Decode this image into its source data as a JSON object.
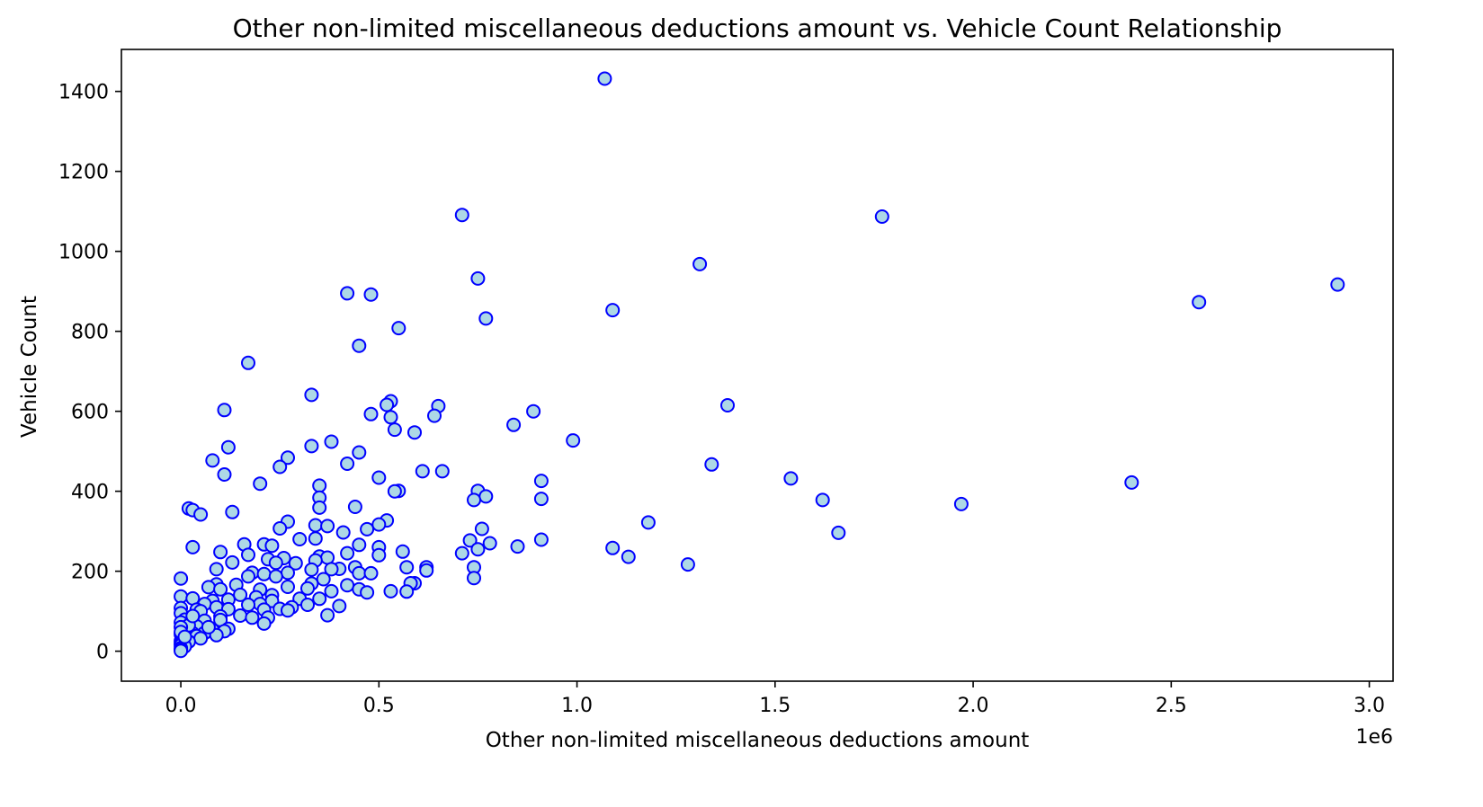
{
  "chart_data": {
    "type": "scatter",
    "title": "Other non-limited miscellaneous deductions amount vs. Vehicle Count Relationship",
    "xlabel": "Other non-limited miscellaneous deductions amount",
    "ylabel": "Vehicle Count",
    "x_offset_label": "1e6",
    "xlim": [
      -0.15,
      3.06
    ],
    "ylim": [
      -75,
      1505
    ],
    "x_ticks": [
      0.0,
      0.5,
      1.0,
      1.5,
      2.0,
      2.5,
      3.0
    ],
    "x_tick_labels": [
      "0.0",
      "0.5",
      "1.0",
      "1.5",
      "2.0",
      "2.5",
      "3.0"
    ],
    "y_ticks": [
      0,
      200,
      400,
      600,
      800,
      1000,
      1200,
      1400
    ],
    "y_tick_labels": [
      "0",
      "200",
      "400",
      "600",
      "800",
      "1000",
      "1200",
      "1400"
    ],
    "grid": false,
    "legend": "none",
    "marker_fill": "#add8e6",
    "marker_edge": "#0000ff",
    "points": [
      [
        1.07,
        1432
      ],
      [
        0.71,
        1091
      ],
      [
        1.77,
        1087
      ],
      [
        1.31,
        968
      ],
      [
        0.75,
        932
      ],
      [
        2.92,
        917
      ],
      [
        0.42,
        895
      ],
      [
        0.48,
        892
      ],
      [
        2.57,
        873
      ],
      [
        1.09,
        853
      ],
      [
        0.77,
        832
      ],
      [
        0.55,
        808
      ],
      [
        0.45,
        764
      ],
      [
        0.17,
        721
      ],
      [
        0.33,
        641
      ],
      [
        0.53,
        625
      ],
      [
        0.52,
        616
      ],
      [
        1.38,
        615
      ],
      [
        0.65,
        613
      ],
      [
        0.89,
        600
      ],
      [
        0.11,
        603
      ],
      [
        0.48,
        593
      ],
      [
        0.64,
        589
      ],
      [
        0.53,
        585
      ],
      [
        0.84,
        566
      ],
      [
        0.54,
        554
      ],
      [
        0.59,
        547
      ],
      [
        0.99,
        527
      ],
      [
        0.38,
        524
      ],
      [
        0.33,
        513
      ],
      [
        0.12,
        510
      ],
      [
        0.45,
        497
      ],
      [
        0.27,
        484
      ],
      [
        0.08,
        477
      ],
      [
        0.42,
        469
      ],
      [
        1.34,
        467
      ],
      [
        0.25,
        461
      ],
      [
        0.61,
        450
      ],
      [
        0.66,
        450
      ],
      [
        0.11,
        442
      ],
      [
        0.5,
        434
      ],
      [
        1.54,
        432
      ],
      [
        0.91,
        426
      ],
      [
        2.4,
        422
      ],
      [
        0.2,
        419
      ],
      [
        0.35,
        414
      ],
      [
        0.55,
        401
      ],
      [
        0.54,
        400
      ],
      [
        0.75,
        401
      ],
      [
        0.77,
        387
      ],
      [
        0.35,
        384
      ],
      [
        0.91,
        381
      ],
      [
        0.74,
        378
      ],
      [
        1.62,
        378
      ],
      [
        1.97,
        368
      ],
      [
        0.44,
        361
      ],
      [
        0.35,
        359
      ],
      [
        0.02,
        357
      ],
      [
        0.03,
        353
      ],
      [
        0.13,
        348
      ],
      [
        0.05,
        342
      ],
      [
        0.52,
        327
      ],
      [
        0.27,
        324
      ],
      [
        1.18,
        322
      ],
      [
        0.5,
        317
      ],
      [
        0.34,
        315
      ],
      [
        0.37,
        313
      ],
      [
        0.25,
        307
      ],
      [
        0.47,
        305
      ],
      [
        0.76,
        306
      ],
      [
        1.66,
        296
      ],
      [
        0.41,
        297
      ],
      [
        0.34,
        282
      ],
      [
        0.3,
        280
      ],
      [
        0.91,
        279
      ],
      [
        0.73,
        277
      ],
      [
        0.78,
        270
      ],
      [
        0.21,
        267
      ],
      [
        0.45,
        266
      ],
      [
        0.16,
        267
      ],
      [
        0.23,
        264
      ],
      [
        0.03,
        260
      ],
      [
        0.85,
        262
      ],
      [
        0.5,
        260
      ],
      [
        1.09,
        258
      ],
      [
        0.75,
        255
      ],
      [
        0.71,
        245
      ],
      [
        0.56,
        249
      ],
      [
        0.1,
        248
      ],
      [
        0.42,
        245
      ],
      [
        0.17,
        241
      ],
      [
        0.5,
        240
      ],
      [
        1.13,
        236
      ],
      [
        0.35,
        237
      ],
      [
        0.37,
        234
      ],
      [
        0.26,
        233
      ],
      [
        0.22,
        230
      ],
      [
        0.34,
        227
      ],
      [
        0.13,
        222
      ],
      [
        0.24,
        221
      ],
      [
        0.29,
        220
      ],
      [
        1.28,
        217
      ],
      [
        0.74,
        210
      ],
      [
        0.62,
        210
      ],
      [
        0.57,
        210
      ],
      [
        0.44,
        210
      ],
      [
        0.4,
        206
      ],
      [
        0.38,
        205
      ],
      [
        0.09,
        205
      ],
      [
        0.33,
        204
      ],
      [
        0.62,
        202
      ],
      [
        0.18,
        196
      ],
      [
        0.27,
        196
      ],
      [
        0.45,
        195
      ],
      [
        0.21,
        193
      ],
      [
        0.48,
        195
      ],
      [
        0.24,
        187
      ],
      [
        0.17,
        187
      ],
      [
        0.74,
        183
      ],
      [
        0.0,
        182
      ],
      [
        0.36,
        180
      ],
      [
        0.59,
        170
      ],
      [
        0.58,
        170
      ],
      [
        0.33,
        169
      ],
      [
        0.42,
        165
      ],
      [
        0.14,
        166
      ],
      [
        0.27,
        161
      ],
      [
        0.09,
        167
      ],
      [
        0.07,
        160
      ],
      [
        0.32,
        157
      ],
      [
        0.53,
        150
      ],
      [
        0.57,
        149
      ],
      [
        0.38,
        150
      ],
      [
        0.45,
        155
      ],
      [
        0.47,
        147
      ],
      [
        0.1,
        155
      ],
      [
        0.2,
        154
      ],
      [
        0.15,
        141
      ],
      [
        0.23,
        140
      ],
      [
        0.19,
        135
      ],
      [
        0.3,
        131
      ],
      [
        0.0,
        137
      ],
      [
        0.35,
        131
      ],
      [
        0.03,
        132
      ],
      [
        0.12,
        129
      ],
      [
        0.23,
        126
      ],
      [
        0.08,
        126
      ],
      [
        0.2,
        118
      ],
      [
        0.06,
        118
      ],
      [
        0.17,
        116
      ],
      [
        0.32,
        116
      ],
      [
        0.4,
        113
      ],
      [
        0.09,
        110
      ],
      [
        0.28,
        110
      ],
      [
        0.0,
        108
      ],
      [
        0.25,
        106
      ],
      [
        0.12,
        105
      ],
      [
        0.04,
        104
      ],
      [
        0.21,
        104
      ],
      [
        0.27,
        102
      ],
      [
        0.05,
        100
      ],
      [
        0.0,
        95
      ],
      [
        0.37,
        90
      ],
      [
        0.15,
        89
      ],
      [
        0.1,
        87
      ],
      [
        0.18,
        84
      ],
      [
        0.22,
        84
      ],
      [
        0.03,
        80
      ],
      [
        0.01,
        79
      ],
      [
        0.1,
        78
      ],
      [
        0.06,
        76
      ],
      [
        0.0,
        72
      ],
      [
        0.21,
        69
      ],
      [
        0.04,
        62
      ],
      [
        0.12,
        56
      ],
      [
        0.08,
        53
      ],
      [
        0.11,
        50
      ],
      [
        0.02,
        50
      ],
      [
        0.06,
        46
      ],
      [
        0.03,
        45
      ],
      [
        0.0,
        42
      ],
      [
        0.09,
        40
      ],
      [
        0.04,
        38
      ],
      [
        0.05,
        32
      ],
      [
        0.01,
        30
      ],
      [
        0.0,
        26
      ],
      [
        0.02,
        24
      ],
      [
        0.0,
        20
      ],
      [
        0.0,
        15
      ],
      [
        0.01,
        12
      ],
      [
        0.0,
        8
      ],
      [
        0.0,
        4
      ],
      [
        0.0,
        1
      ],
      [
        0.01,
        55
      ],
      [
        0.02,
        65
      ],
      [
        0.0,
        60
      ],
      [
        0.07,
        60
      ],
      [
        0.03,
        88
      ],
      [
        0.0,
        48
      ],
      [
        0.01,
        36
      ]
    ]
  }
}
